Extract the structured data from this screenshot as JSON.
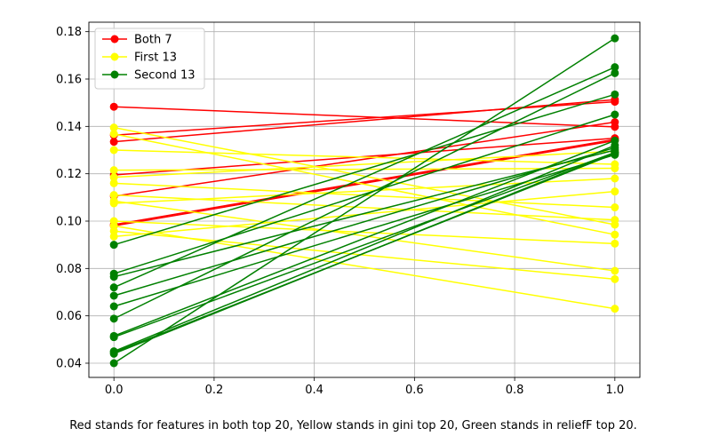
{
  "chart_data": {
    "type": "line",
    "xlim": [
      -0.05,
      1.05
    ],
    "ylim": [
      0.034,
      0.184
    ],
    "xticks": [
      0.0,
      0.2,
      0.4,
      0.6,
      0.8,
      1.0
    ],
    "xtick_labels": [
      "0.0",
      "0.2",
      "0.4",
      "0.6",
      "0.8",
      "1.0"
    ],
    "yticks": [
      0.04,
      0.06,
      0.08,
      0.1,
      0.12,
      0.14,
      0.16,
      0.18
    ],
    "ytick_labels": [
      "0.04",
      "0.06",
      "0.08",
      "0.10",
      "0.12",
      "0.14",
      "0.16",
      "0.18"
    ],
    "grid": true,
    "legend_position": "top-left",
    "legend": [
      {
        "name": "Both 7",
        "color": "#ff0000"
      },
      {
        "name": "First 13",
        "color": "#ffff00"
      },
      {
        "name": "Second 13",
        "color": "#008000"
      }
    ],
    "groups": [
      {
        "name": "Both 7",
        "color": "#ff0000",
        "lines": [
          [
            0.1483,
            0.1398
          ],
          [
            0.1363,
            0.1504
          ],
          [
            0.1335,
            0.1513
          ],
          [
            0.1195,
            0.135
          ],
          [
            0.1105,
            0.1418
          ],
          [
            0.0985,
            0.1345
          ],
          [
            0.098,
            0.134
          ]
        ]
      },
      {
        "name": "First 13",
        "color": "#ffff00",
        "lines": [
          [
            0.1395,
            0.0985
          ],
          [
            0.1368,
            0.0943
          ],
          [
            0.13,
            0.124
          ],
          [
            0.1215,
            0.1223
          ],
          [
            0.1185,
            0.1295
          ],
          [
            0.116,
            0.1058
          ],
          [
            0.111,
            0.1005
          ],
          [
            0.1085,
            0.079
          ],
          [
            0.1075,
            0.118
          ],
          [
            0.1,
            0.0905
          ],
          [
            0.098,
            0.063
          ],
          [
            0.0958,
            0.0755
          ],
          [
            0.0935,
            0.1125
          ]
        ]
      },
      {
        "name": "Second 13",
        "color": "#008000",
        "lines": [
          [
            0.09,
            0.1535
          ],
          [
            0.0778,
            0.145
          ],
          [
            0.0765,
            0.13
          ],
          [
            0.072,
            0.165
          ],
          [
            0.0685,
            0.131
          ],
          [
            0.064,
            0.128
          ],
          [
            0.0588,
            0.1625
          ],
          [
            0.0515,
            0.134
          ],
          [
            0.051,
            0.129
          ],
          [
            0.045,
            0.132
          ],
          [
            0.0445,
            0.1285
          ],
          [
            0.044,
            0.129
          ],
          [
            0.04,
            0.1772
          ]
        ]
      }
    ]
  },
  "caption": "Red stands for features in both top 20, Yellow stands in gini top 20, Green stands in reliefF top 20."
}
